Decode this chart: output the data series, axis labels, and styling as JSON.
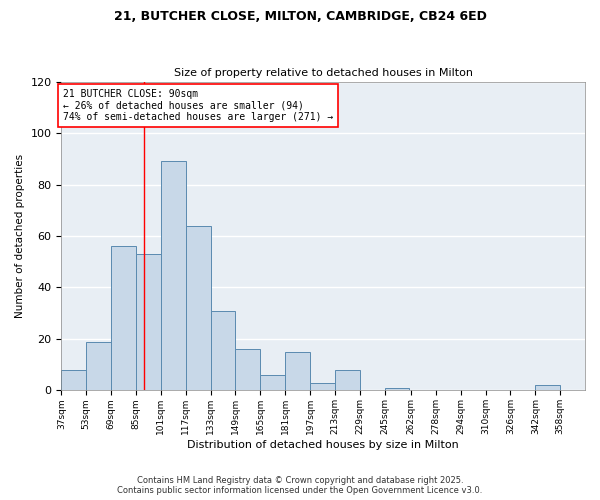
{
  "title": "21, BUTCHER CLOSE, MILTON, CAMBRIDGE, CB24 6ED",
  "subtitle": "Size of property relative to detached houses in Milton",
  "xlabel": "Distribution of detached houses by size in Milton",
  "ylabel": "Number of detached properties",
  "bar_color": "#c8d8e8",
  "bar_edge_color": "#5a8ab0",
  "background_color": "#ffffff",
  "plot_bg_color": "#e8eef4",
  "grid_color": "#ffffff",
  "bin_labels": [
    "37sqm",
    "53sqm",
    "69sqm",
    "85sqm",
    "101sqm",
    "117sqm",
    "133sqm",
    "149sqm",
    "165sqm",
    "181sqm",
    "197sqm",
    "213sqm",
    "229sqm",
    "245sqm",
    "262sqm",
    "278sqm",
    "294sqm",
    "310sqm",
    "326sqm",
    "342sqm",
    "358sqm"
  ],
  "bin_edges": [
    37,
    53,
    69,
    85,
    101,
    117,
    133,
    149,
    165,
    181,
    197,
    213,
    229,
    245,
    262,
    278,
    294,
    310,
    326,
    342,
    358,
    374
  ],
  "bar_heights": [
    8,
    19,
    56,
    53,
    89,
    64,
    31,
    16,
    6,
    15,
    3,
    8,
    0,
    1,
    0,
    0,
    0,
    0,
    0,
    2,
    0
  ],
  "ylim": [
    0,
    120
  ],
  "yticks": [
    0,
    20,
    40,
    60,
    80,
    100,
    120
  ],
  "vline_x": 90,
  "annotation_title": "21 BUTCHER CLOSE: 90sqm",
  "annotation_line1": "← 26% of detached houses are smaller (94)",
  "annotation_line2": "74% of semi-detached houses are larger (271) →",
  "footer_line1": "Contains HM Land Registry data © Crown copyright and database right 2025.",
  "footer_line2": "Contains public sector information licensed under the Open Government Licence v3.0."
}
